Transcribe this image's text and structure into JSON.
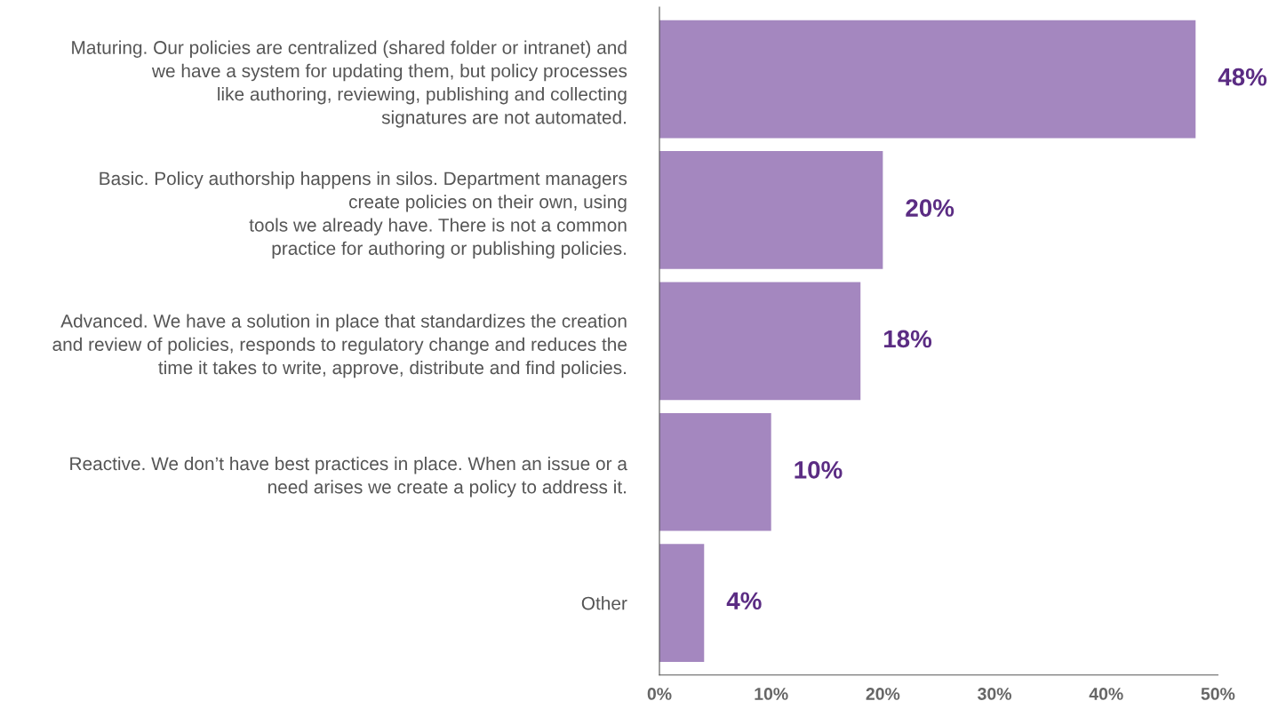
{
  "chart_data": {
    "type": "bar",
    "orientation": "horizontal",
    "categories": [
      "Maturing. Our policies are centralized (shared folder or intranet) and\nwe have a system for updating them, but policy processes\nlike authoring, reviewing, publishing and collecting\nsignatures are not automated.",
      "Basic. Policy authorship happens in silos. Department managers\ncreate policies on their own, using\ntools we already have. There is not a common\npractice for authoring or publishing policies.",
      "Advanced. We have a solution in place that standardizes the creation\nand review of policies, responds to regulatory change and reduces the\ntime it takes to write, approve, distribute and find policies.",
      "Reactive. We don’t have best practices in place. When an issue or a\nneed arises we create a policy to address it.",
      "Other"
    ],
    "values": [
      48,
      20,
      18,
      10,
      4
    ],
    "color": "#a487bf",
    "value_labels": [
      "48%",
      "20%",
      "18%",
      "10%",
      "4%"
    ],
    "xlim": [
      0,
      50
    ],
    "xticks": [
      {
        "value": 0,
        "label": "0%"
      },
      {
        "value": 10,
        "label": "10%"
      },
      {
        "value": 20,
        "label": "20%"
      },
      {
        "value": 30,
        "label": "30%"
      },
      {
        "value": 40,
        "label": "40%"
      },
      {
        "value": 50,
        "label": "50%"
      }
    ],
    "grid": false,
    "legend": false
  }
}
